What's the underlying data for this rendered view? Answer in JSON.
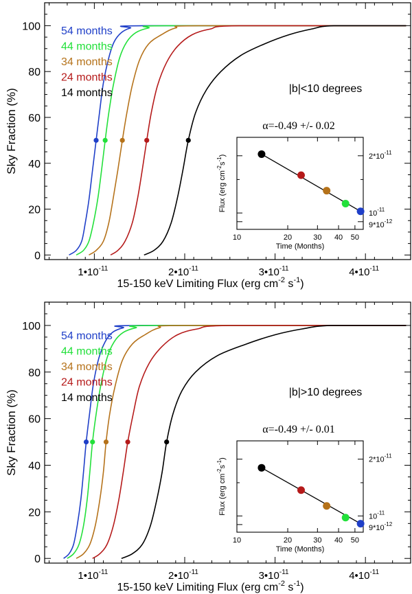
{
  "chart_data": [
    {
      "type": "line",
      "region": "|b|<10 degrees",
      "xlabel_main": "15-150 keV Limiting Flux (erg cm",
      "xlabel_sup1": "-2",
      "xlabel_mid": " s",
      "xlabel_sup2": "-1",
      "xlabel_end": ")",
      "ylabel": "Sky Fraction (%)",
      "xlim": [
        0.45,
        4.5
      ],
      "ylim": [
        -2,
        110
      ],
      "x_unit": "1e-11 erg cm^-2 s^-1",
      "xticks": [
        {
          "value": 1,
          "mantissa": "1•",
          "base": "10",
          "exp": "-11"
        },
        {
          "value": 2,
          "mantissa": "2•",
          "base": "10",
          "exp": "-11"
        },
        {
          "value": 3,
          "mantissa": "3•",
          "base": "10",
          "exp": "-11"
        },
        {
          "value": 4,
          "mantissa": "4•",
          "base": "10",
          "exp": "-11"
        }
      ],
      "yticks": [
        0,
        20,
        40,
        60,
        80,
        100
      ],
      "series": [
        {
          "name": "54 months",
          "color": "#1f3fc8",
          "x50": 1.02,
          "x": [
            0.72,
            0.8,
            0.86,
            0.9,
            0.94,
            0.98,
            1.02,
            1.06,
            1.1,
            1.16,
            1.22,
            1.3,
            1.4,
            1.55,
            4.45
          ],
          "y": [
            0,
            2,
            6,
            14,
            24,
            37,
            50,
            63,
            75,
            86,
            93,
            97,
            99,
            100,
            100
          ]
        },
        {
          "name": "44 months",
          "color": "#22e03a",
          "x50": 1.12,
          "x": [
            0.8,
            0.88,
            0.94,
            0.99,
            1.04,
            1.08,
            1.12,
            1.16,
            1.21,
            1.28,
            1.36,
            1.46,
            1.6,
            1.8,
            4.45
          ],
          "y": [
            0,
            2,
            6,
            14,
            25,
            37,
            50,
            62,
            74,
            86,
            93,
            97,
            99,
            100,
            100
          ]
        },
        {
          "name": "34 months",
          "color": "#b5721a",
          "x50": 1.31,
          "x": [
            0.94,
            1.02,
            1.1,
            1.16,
            1.21,
            1.26,
            1.31,
            1.36,
            1.42,
            1.5,
            1.6,
            1.74,
            1.9,
            2.15,
            4.45
          ],
          "y": [
            0,
            2,
            6,
            14,
            25,
            37,
            50,
            62,
            74,
            85,
            92,
            96,
            99,
            100,
            100
          ]
        },
        {
          "name": "24 months",
          "color": "#b51a1a",
          "x50": 1.58,
          "x": [
            1.18,
            1.26,
            1.34,
            1.42,
            1.48,
            1.53,
            1.58,
            1.63,
            1.7,
            1.8,
            1.92,
            2.08,
            2.28,
            2.6,
            4.45
          ],
          "y": [
            0,
            2,
            6,
            14,
            25,
            37,
            50,
            62,
            74,
            84,
            91,
            96,
            98.5,
            100,
            100
          ]
        },
        {
          "name": "14 months",
          "color": "#000000",
          "x50": 2.04,
          "x": [
            1.55,
            1.66,
            1.76,
            1.85,
            1.92,
            1.98,
            2.04,
            2.12,
            2.24,
            2.4,
            2.62,
            2.88,
            3.15,
            3.4,
            3.65,
            4.45
          ],
          "y": [
            0,
            2,
            6,
            14,
            25,
            37,
            50,
            62,
            72,
            80,
            87,
            92,
            96,
            98.5,
            100,
            100
          ]
        }
      ],
      "label_text": "|b|<10 degrees",
      "inset": {
        "title_symbol": "α",
        "title_value": "=-0.49 +/- 0.02",
        "ylabel_main": "Flux (erg cm",
        "ylabel_sup1": "-2",
        "ylabel_mid": "s",
        "ylabel_sup2": "-1",
        "ylabel_end": ")",
        "xlabel": "Time (Months)",
        "xlim": [
          10,
          56
        ],
        "ylim": [
          0.82,
          2.5
        ],
        "xtick_labels": [
          "10",
          "20",
          "30",
          "40",
          "50"
        ],
        "xtick_values": [
          10,
          20,
          30,
          40,
          50
        ],
        "ytick_labels": [
          {
            "value": 2.0,
            "mantissa": "2*",
            "base": "10",
            "exp": "-11"
          },
          {
            "value": 1.0,
            "mantissa": "",
            "base": "10",
            "exp": "-11"
          },
          {
            "value": 0.9,
            "mantissa": "9*",
            "base": "10",
            "exp": "-12"
          }
        ],
        "points": [
          {
            "months": 14,
            "flux": 2.04,
            "color": "#000000"
          },
          {
            "months": 24,
            "flux": 1.58,
            "color": "#b51a1a"
          },
          {
            "months": 34,
            "flux": 1.31,
            "color": "#b5721a"
          },
          {
            "months": 44,
            "flux": 1.12,
            "color": "#22e03a"
          },
          {
            "months": 54,
            "flux": 1.02,
            "color": "#1f3fc8"
          }
        ]
      }
    },
    {
      "type": "line",
      "region": "|b|>10 degrees",
      "xlabel_main": "15-150 keV Limiting Flux (erg cm",
      "xlabel_sup1": "-2",
      "xlabel_mid": " s",
      "xlabel_sup2": "-1",
      "xlabel_end": ")",
      "ylabel": "Sky Fraction (%)",
      "xlim": [
        0.45,
        4.5
      ],
      "ylim": [
        -2,
        110
      ],
      "x_unit": "1e-11 erg cm^-2 s^-1",
      "xticks": [
        {
          "value": 1,
          "mantissa": "1•",
          "base": "10",
          "exp": "-11"
        },
        {
          "value": 2,
          "mantissa": "2•",
          "base": "10",
          "exp": "-11"
        },
        {
          "value": 3,
          "mantissa": "3•",
          "base": "10",
          "exp": "-11"
        },
        {
          "value": 4,
          "mantissa": "4•",
          "base": "10",
          "exp": "-11"
        }
      ],
      "yticks": [
        0,
        20,
        40,
        60,
        80,
        100
      ],
      "series": [
        {
          "name": "54 months",
          "color": "#1f3fc8",
          "x50": 0.91,
          "x": [
            0.66,
            0.72,
            0.77,
            0.81,
            0.85,
            0.88,
            0.91,
            0.95,
            0.99,
            1.05,
            1.12,
            1.2,
            1.32,
            1.5,
            4.45
          ],
          "y": [
            0,
            2,
            6,
            14,
            25,
            37,
            50,
            63,
            75,
            86,
            93,
            97,
            99,
            100,
            100
          ]
        },
        {
          "name": "44 months",
          "color": "#22e03a",
          "x50": 0.98,
          "x": [
            0.7,
            0.77,
            0.83,
            0.88,
            0.92,
            0.95,
            0.98,
            1.02,
            1.07,
            1.14,
            1.22,
            1.32,
            1.46,
            1.66,
            4.45
          ],
          "y": [
            0,
            2,
            6,
            14,
            25,
            37,
            50,
            62,
            74,
            86,
            93,
            97,
            99,
            100,
            100
          ]
        },
        {
          "name": "34 months",
          "color": "#b5721a",
          "x50": 1.13,
          "x": [
            0.8,
            0.88,
            0.95,
            1.01,
            1.06,
            1.1,
            1.13,
            1.17,
            1.23,
            1.31,
            1.42,
            1.56,
            1.72,
            1.98,
            4.45
          ],
          "y": [
            0,
            2,
            6,
            14,
            25,
            37,
            50,
            62,
            74,
            85,
            92,
            96,
            99,
            100,
            100
          ]
        },
        {
          "name": "24 months",
          "color": "#b51a1a",
          "x50": 1.37,
          "x": [
            0.98,
            1.06,
            1.14,
            1.21,
            1.27,
            1.32,
            1.37,
            1.43,
            1.5,
            1.61,
            1.75,
            1.92,
            2.14,
            2.5,
            4.45
          ],
          "y": [
            0,
            2,
            6,
            14,
            25,
            37,
            50,
            62,
            74,
            84,
            91,
            96,
            98.5,
            100,
            100
          ]
        },
        {
          "name": "14 months",
          "color": "#000000",
          "x50": 1.8,
          "x": [
            1.3,
            1.42,
            1.53,
            1.62,
            1.69,
            1.75,
            1.8,
            1.87,
            1.97,
            2.12,
            2.36,
            2.68,
            3.0,
            3.3,
            3.62,
            4.45
          ],
          "y": [
            0,
            2,
            6,
            14,
            25,
            37,
            50,
            62,
            72,
            80,
            87,
            92,
            96,
            98.5,
            100,
            100
          ]
        }
      ],
      "label_text": "|b|>10 degrees",
      "inset": {
        "title_symbol": "α",
        "title_value": "=-0.49 +/- 0.01",
        "ylabel_main": "Flux (erg cm",
        "ylabel_sup1": "-2",
        "ylabel_mid": "s",
        "ylabel_sup2": "-1",
        "ylabel_end": ")",
        "xlabel": "Time (Months)",
        "xlim": [
          10,
          56
        ],
        "ylim": [
          0.82,
          2.5
        ],
        "xtick_labels": [
          "10",
          "20",
          "30",
          "40",
          "50"
        ],
        "xtick_values": [
          10,
          20,
          30,
          40,
          50
        ],
        "ytick_labels": [
          {
            "value": 2.0,
            "mantissa": "2*",
            "base": "10",
            "exp": "-11"
          },
          {
            "value": 1.0,
            "mantissa": "",
            "base": "10",
            "exp": "-11"
          },
          {
            "value": 0.9,
            "mantissa": "9*",
            "base": "10",
            "exp": "-12"
          }
        ],
        "points": [
          {
            "months": 14,
            "flux": 1.8,
            "color": "#000000"
          },
          {
            "months": 24,
            "flux": 1.37,
            "color": "#b51a1a"
          },
          {
            "months": 34,
            "flux": 1.13,
            "color": "#b5721a"
          },
          {
            "months": 44,
            "flux": 0.98,
            "color": "#22e03a"
          },
          {
            "months": 54,
            "flux": 0.91,
            "color": "#1f3fc8"
          }
        ]
      }
    }
  ]
}
